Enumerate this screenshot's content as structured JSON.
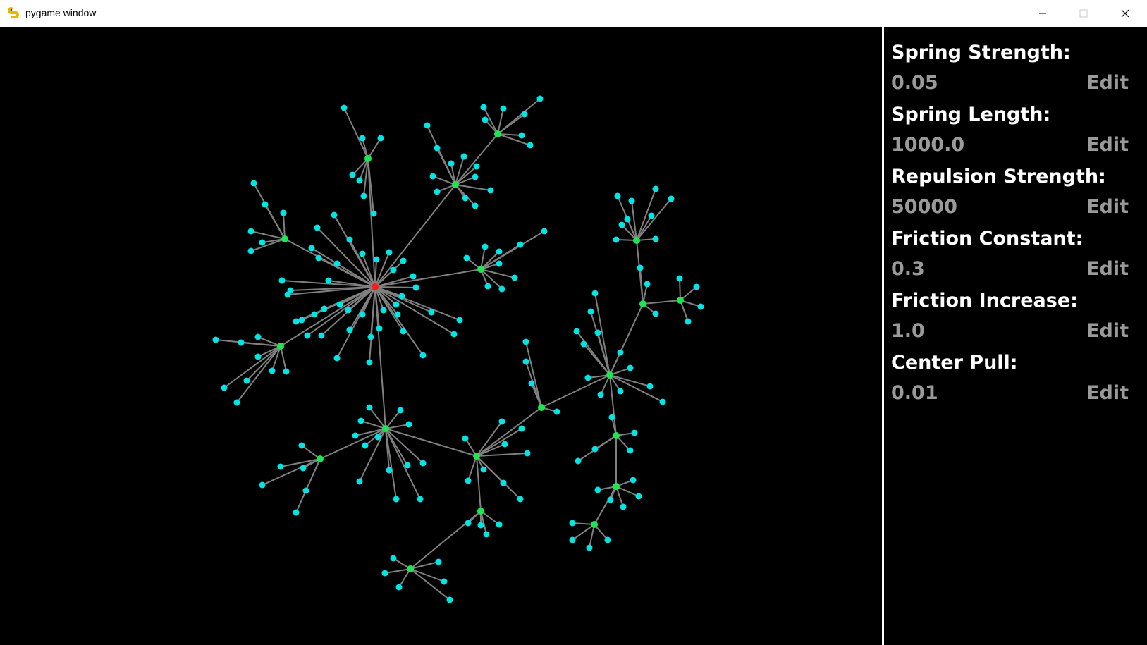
{
  "window": {
    "title": "pygame window"
  },
  "colors": {
    "root": "#ff1a1a",
    "hub": "#1ee650",
    "leaf": "#00e5e5",
    "edge": "#808080",
    "value": "#9a9a9a"
  },
  "params": [
    {
      "label": "Spring Strength:",
      "value": "0.05",
      "edit": "Edit"
    },
    {
      "label": "Spring Length:",
      "value": "1000.0",
      "edit": "Edit"
    },
    {
      "label": "Repulsion Strength:",
      "value": "50000",
      "edit": "Edit"
    },
    {
      "label": "Friction Constant:",
      "value": "0.3",
      "edit": "Edit"
    },
    {
      "label": "Friction Increase:",
      "value": "1.0",
      "edit": "Edit"
    },
    {
      "label": "Center Pull:",
      "value": "0.01",
      "edit": "Edit"
    }
  ]
}
